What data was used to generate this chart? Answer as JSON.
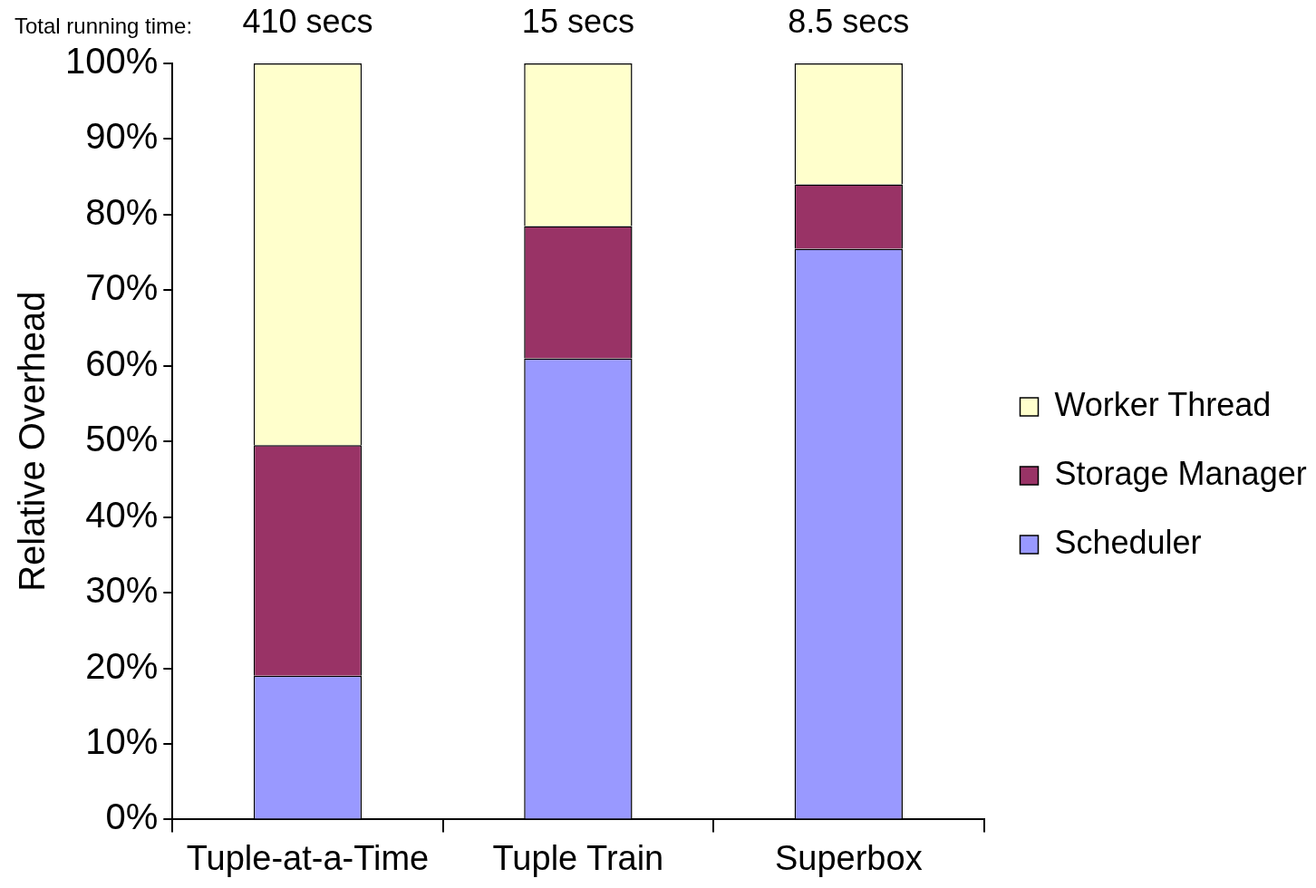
{
  "chart_data": {
    "type": "bar",
    "stacked": true,
    "ylabel": "Relative Overhead",
    "categories": [
      "Tuple-at-a-Time",
      "Tuple Train",
      "Superbox"
    ],
    "series": [
      {
        "name": "Scheduler",
        "color": "#9999ff",
        "values": [
          19,
          61,
          75.5
        ]
      },
      {
        "name": "Storage Manager",
        "color": "#993366",
        "values": [
          30.5,
          17.5,
          8.5
        ]
      },
      {
        "name": "Worker Thread",
        "color": "#ffffcc",
        "values": [
          50.5,
          21.5,
          16
        ]
      }
    ],
    "annotations": [
      "Total running time:",
      "410 secs",
      "15 secs",
      "8.5 secs"
    ],
    "ylim": [
      0,
      100
    ],
    "yticks": [
      {
        "value": 0,
        "label": "0%"
      },
      {
        "value": 10,
        "label": "10%"
      },
      {
        "value": 20,
        "label": "20%"
      },
      {
        "value": 30,
        "label": "30%"
      },
      {
        "value": 40,
        "label": "40%"
      },
      {
        "value": 50,
        "label": "50%"
      },
      {
        "value": 60,
        "label": "60%"
      },
      {
        "value": 70,
        "label": "70%"
      },
      {
        "value": 80,
        "label": "80%"
      },
      {
        "value": 90,
        "label": "90%"
      },
      {
        "value": 100,
        "label": "100%"
      }
    ],
    "grid": false,
    "legend": "right"
  }
}
